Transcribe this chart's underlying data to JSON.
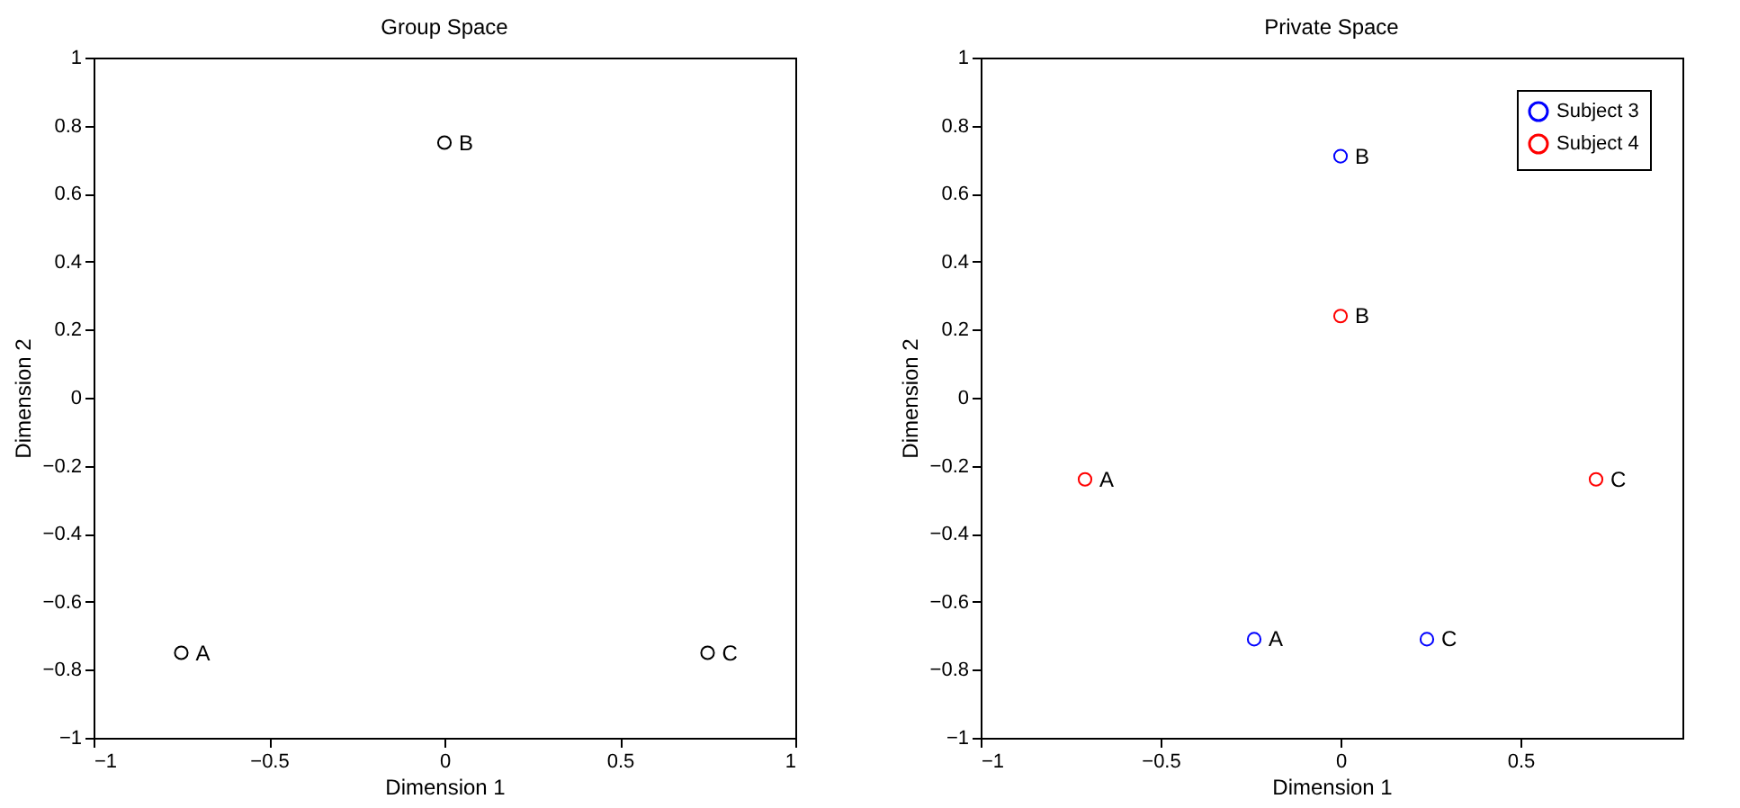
{
  "chart_data": [
    {
      "type": "scatter",
      "title": "Group Space",
      "xlabel": "Dimension 1",
      "ylabel": "Dimension 2",
      "xlim": [
        -1,
        1
      ],
      "xticks": [
        -1,
        -0.5,
        0,
        0.5,
        1
      ],
      "ylim": [
        -1,
        1
      ],
      "yticks": [
        -1,
        -0.8,
        -0.6,
        -0.4,
        -0.2,
        0,
        0.2,
        0.4,
        0.6,
        0.8,
        1
      ],
      "marker": "circle",
      "grid": false,
      "legend": false,
      "series": [
        {
          "color": "#000000",
          "x": [
            -0.75,
            0,
            0.75
          ],
          "values": [
            -0.75,
            0.75,
            -0.75
          ]
        }
      ],
      "annotations": [
        {
          "text": "A",
          "x": -0.75,
          "y": -0.75
        },
        {
          "text": "B",
          "x": 0,
          "y": 0.75
        },
        {
          "text": "C",
          "x": 0.75,
          "y": -0.75
        }
      ]
    },
    {
      "type": "scatter",
      "title": "Private Space",
      "xlabel": "Dimension 1",
      "ylabel": "Dimension 2",
      "xlim": [
        -1,
        0.95
      ],
      "xticks": [
        -1,
        -0.5,
        0,
        0.5
      ],
      "ylim": [
        -1,
        1
      ],
      "yticks": [
        -1,
        -0.8,
        -0.6,
        -0.4,
        -0.2,
        0,
        0.2,
        0.4,
        0.6,
        0.8,
        1
      ],
      "marker": "circle",
      "grid": false,
      "legend": "top right",
      "series": [
        {
          "name": "Subject 3",
          "color": "#0000ff",
          "x": [
            -0.24,
            0,
            0.24
          ],
          "values": [
            -0.71,
            0.71,
            -0.71
          ]
        },
        {
          "name": "Subject 4",
          "color": "#ff0000",
          "x": [
            -0.71,
            0,
            0.71
          ],
          "values": [
            -0.24,
            0.24,
            -0.24
          ]
        }
      ],
      "annotations": [
        {
          "text": "A",
          "x": -0.24,
          "y": -0.71
        },
        {
          "text": "B",
          "x": 0,
          "y": 0.71
        },
        {
          "text": "C",
          "x": 0.24,
          "y": -0.71
        },
        {
          "text": "A",
          "x": -0.71,
          "y": -0.24
        },
        {
          "text": "B",
          "x": 0,
          "y": 0.24
        },
        {
          "text": "C",
          "x": 0.71,
          "y": -0.24
        }
      ]
    }
  ]
}
